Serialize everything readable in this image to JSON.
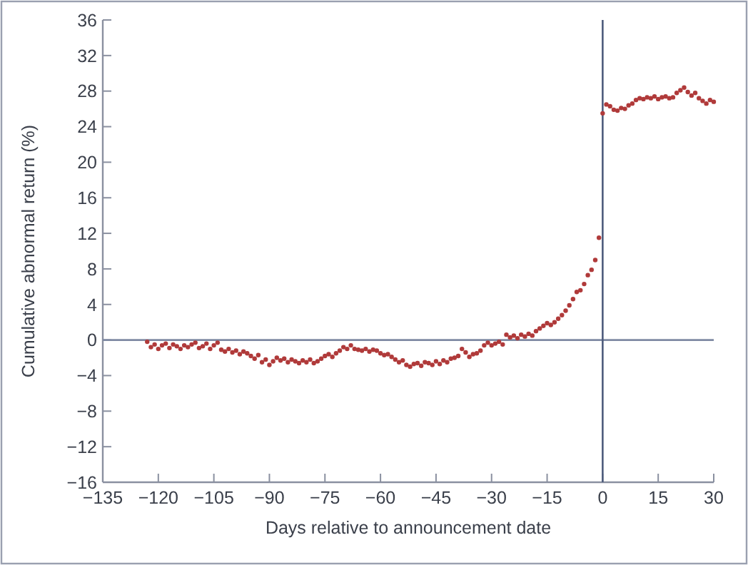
{
  "chart_data": {
    "type": "scatter",
    "xlabel": "Days relative to announcement date",
    "ylabel": "Cumulative abnormal return (%)",
    "marker": "circle",
    "grid": false,
    "xlim": [
      -135,
      30
    ],
    "ylim": [
      -16,
      36
    ],
    "xticks": [
      {
        "value": -135,
        "label": "−135"
      },
      {
        "value": -120,
        "label": "−120"
      },
      {
        "value": -105,
        "label": "−105"
      },
      {
        "value": -90,
        "label": "−90"
      },
      {
        "value": -75,
        "label": "−75"
      },
      {
        "value": -60,
        "label": "−60"
      },
      {
        "value": -45,
        "label": "−45"
      },
      {
        "value": -30,
        "label": "−30"
      },
      {
        "value": -15,
        "label": "−15"
      },
      0,
      15,
      30
    ],
    "yticks": [
      {
        "value": -16,
        "label": "−16"
      },
      {
        "value": -12,
        "label": "−12"
      },
      {
        "value": -8,
        "label": "−8"
      },
      {
        "value": -4,
        "label": "−4"
      },
      0,
      4,
      8,
      12,
      16,
      20,
      24,
      28,
      32,
      36
    ],
    "ref_lines": [
      {
        "axis": "y",
        "value": 0,
        "color": "#7f8aa3"
      },
      {
        "axis": "x",
        "value": 0,
        "color": "#4d5b7c"
      }
    ],
    "series": [
      {
        "color": "#b03a3a",
        "x": [
          -123,
          -122,
          -121,
          -120,
          -119,
          -118,
          -117,
          -116,
          -115,
          -114,
          -113,
          -112,
          -111,
          -110,
          -109,
          -108,
          -107,
          -106,
          -105,
          -104,
          -103,
          -102,
          -101,
          -100,
          -99,
          -98,
          -97,
          -96,
          -95,
          -94,
          -93,
          -92,
          -91,
          -90,
          -89,
          -88,
          -87,
          -86,
          -85,
          -84,
          -83,
          -82,
          -81,
          -80,
          -79,
          -78,
          -77,
          -76,
          -75,
          -74,
          -73,
          -72,
          -71,
          -70,
          -69,
          -68,
          -67,
          -66,
          -65,
          -64,
          -63,
          -62,
          -61,
          -60,
          -59,
          -58,
          -57,
          -56,
          -55,
          -54,
          -53,
          -52,
          -51,
          -50,
          -49,
          -48,
          -47,
          -46,
          -45,
          -44,
          -43,
          -42,
          -41,
          -40,
          -39,
          -38,
          -37,
          -36,
          -35,
          -34,
          -33,
          -32,
          -31,
          -30,
          -29,
          -28,
          -27,
          -26,
          -25,
          -24,
          -23,
          -22,
          -21,
          -20,
          -19,
          -18,
          -17,
          -16,
          -15,
          -14,
          -13,
          -12,
          -11,
          -10,
          -9,
          -8,
          -7,
          -6,
          -5,
          -4,
          -3,
          -2,
          -1,
          0,
          1,
          2,
          3,
          4,
          5,
          6,
          7,
          8,
          9,
          10,
          11,
          12,
          13,
          14,
          15,
          16,
          17,
          18,
          19,
          20,
          21,
          22,
          23,
          24,
          25,
          26,
          27,
          28,
          29,
          30
        ],
        "values": [
          -0.2,
          -0.8,
          -0.5,
          -1.0,
          -0.6,
          -0.4,
          -0.9,
          -0.5,
          -0.7,
          -1.0,
          -0.6,
          -0.8,
          -0.5,
          -0.3,
          -0.9,
          -0.7,
          -0.4,
          -1.0,
          -0.6,
          -0.3,
          -1.1,
          -1.3,
          -1.0,
          -1.4,
          -1.2,
          -1.6,
          -1.3,
          -1.5,
          -1.8,
          -2.1,
          -1.7,
          -2.5,
          -2.2,
          -2.8,
          -2.4,
          -2.0,
          -2.3,
          -2.1,
          -2.5,
          -2.2,
          -2.4,
          -2.6,
          -2.3,
          -2.5,
          -2.2,
          -2.6,
          -2.4,
          -2.1,
          -1.8,
          -1.6,
          -1.9,
          -1.5,
          -1.2,
          -0.8,
          -1.0,
          -0.6,
          -1.0,
          -1.1,
          -1.2,
          -1.0,
          -1.3,
          -1.1,
          -1.2,
          -1.5,
          -1.7,
          -1.6,
          -1.9,
          -2.2,
          -2.5,
          -2.3,
          -2.8,
          -3.0,
          -2.7,
          -2.6,
          -2.9,
          -2.5,
          -2.6,
          -2.8,
          -2.4,
          -2.7,
          -2.3,
          -2.5,
          -2.1,
          -2.0,
          -1.8,
          -1.0,
          -1.4,
          -1.9,
          -1.6,
          -1.5,
          -1.2,
          -0.6,
          -0.3,
          -0.6,
          -0.4,
          -0.2,
          -0.5,
          0.6,
          0.3,
          0.5,
          0.2,
          0.6,
          0.4,
          0.7,
          0.5,
          1.0,
          1.3,
          1.6,
          1.9,
          1.7,
          2.0,
          2.4,
          2.8,
          3.3,
          3.9,
          4.6,
          5.4,
          5.6,
          6.3,
          7.3,
          7.9,
          9.0,
          11.5,
          25.5,
          26.5,
          26.3,
          25.9,
          25.8,
          26.1,
          26.0,
          26.4,
          26.6,
          27.0,
          27.2,
          27.1,
          27.3,
          27.2,
          27.4,
          27.1,
          27.3,
          27.4,
          27.2,
          27.3,
          27.8,
          28.1,
          28.4,
          27.9,
          27.5,
          27.8,
          27.2,
          26.9,
          26.6,
          27.0,
          26.8
        ]
      }
    ]
  }
}
